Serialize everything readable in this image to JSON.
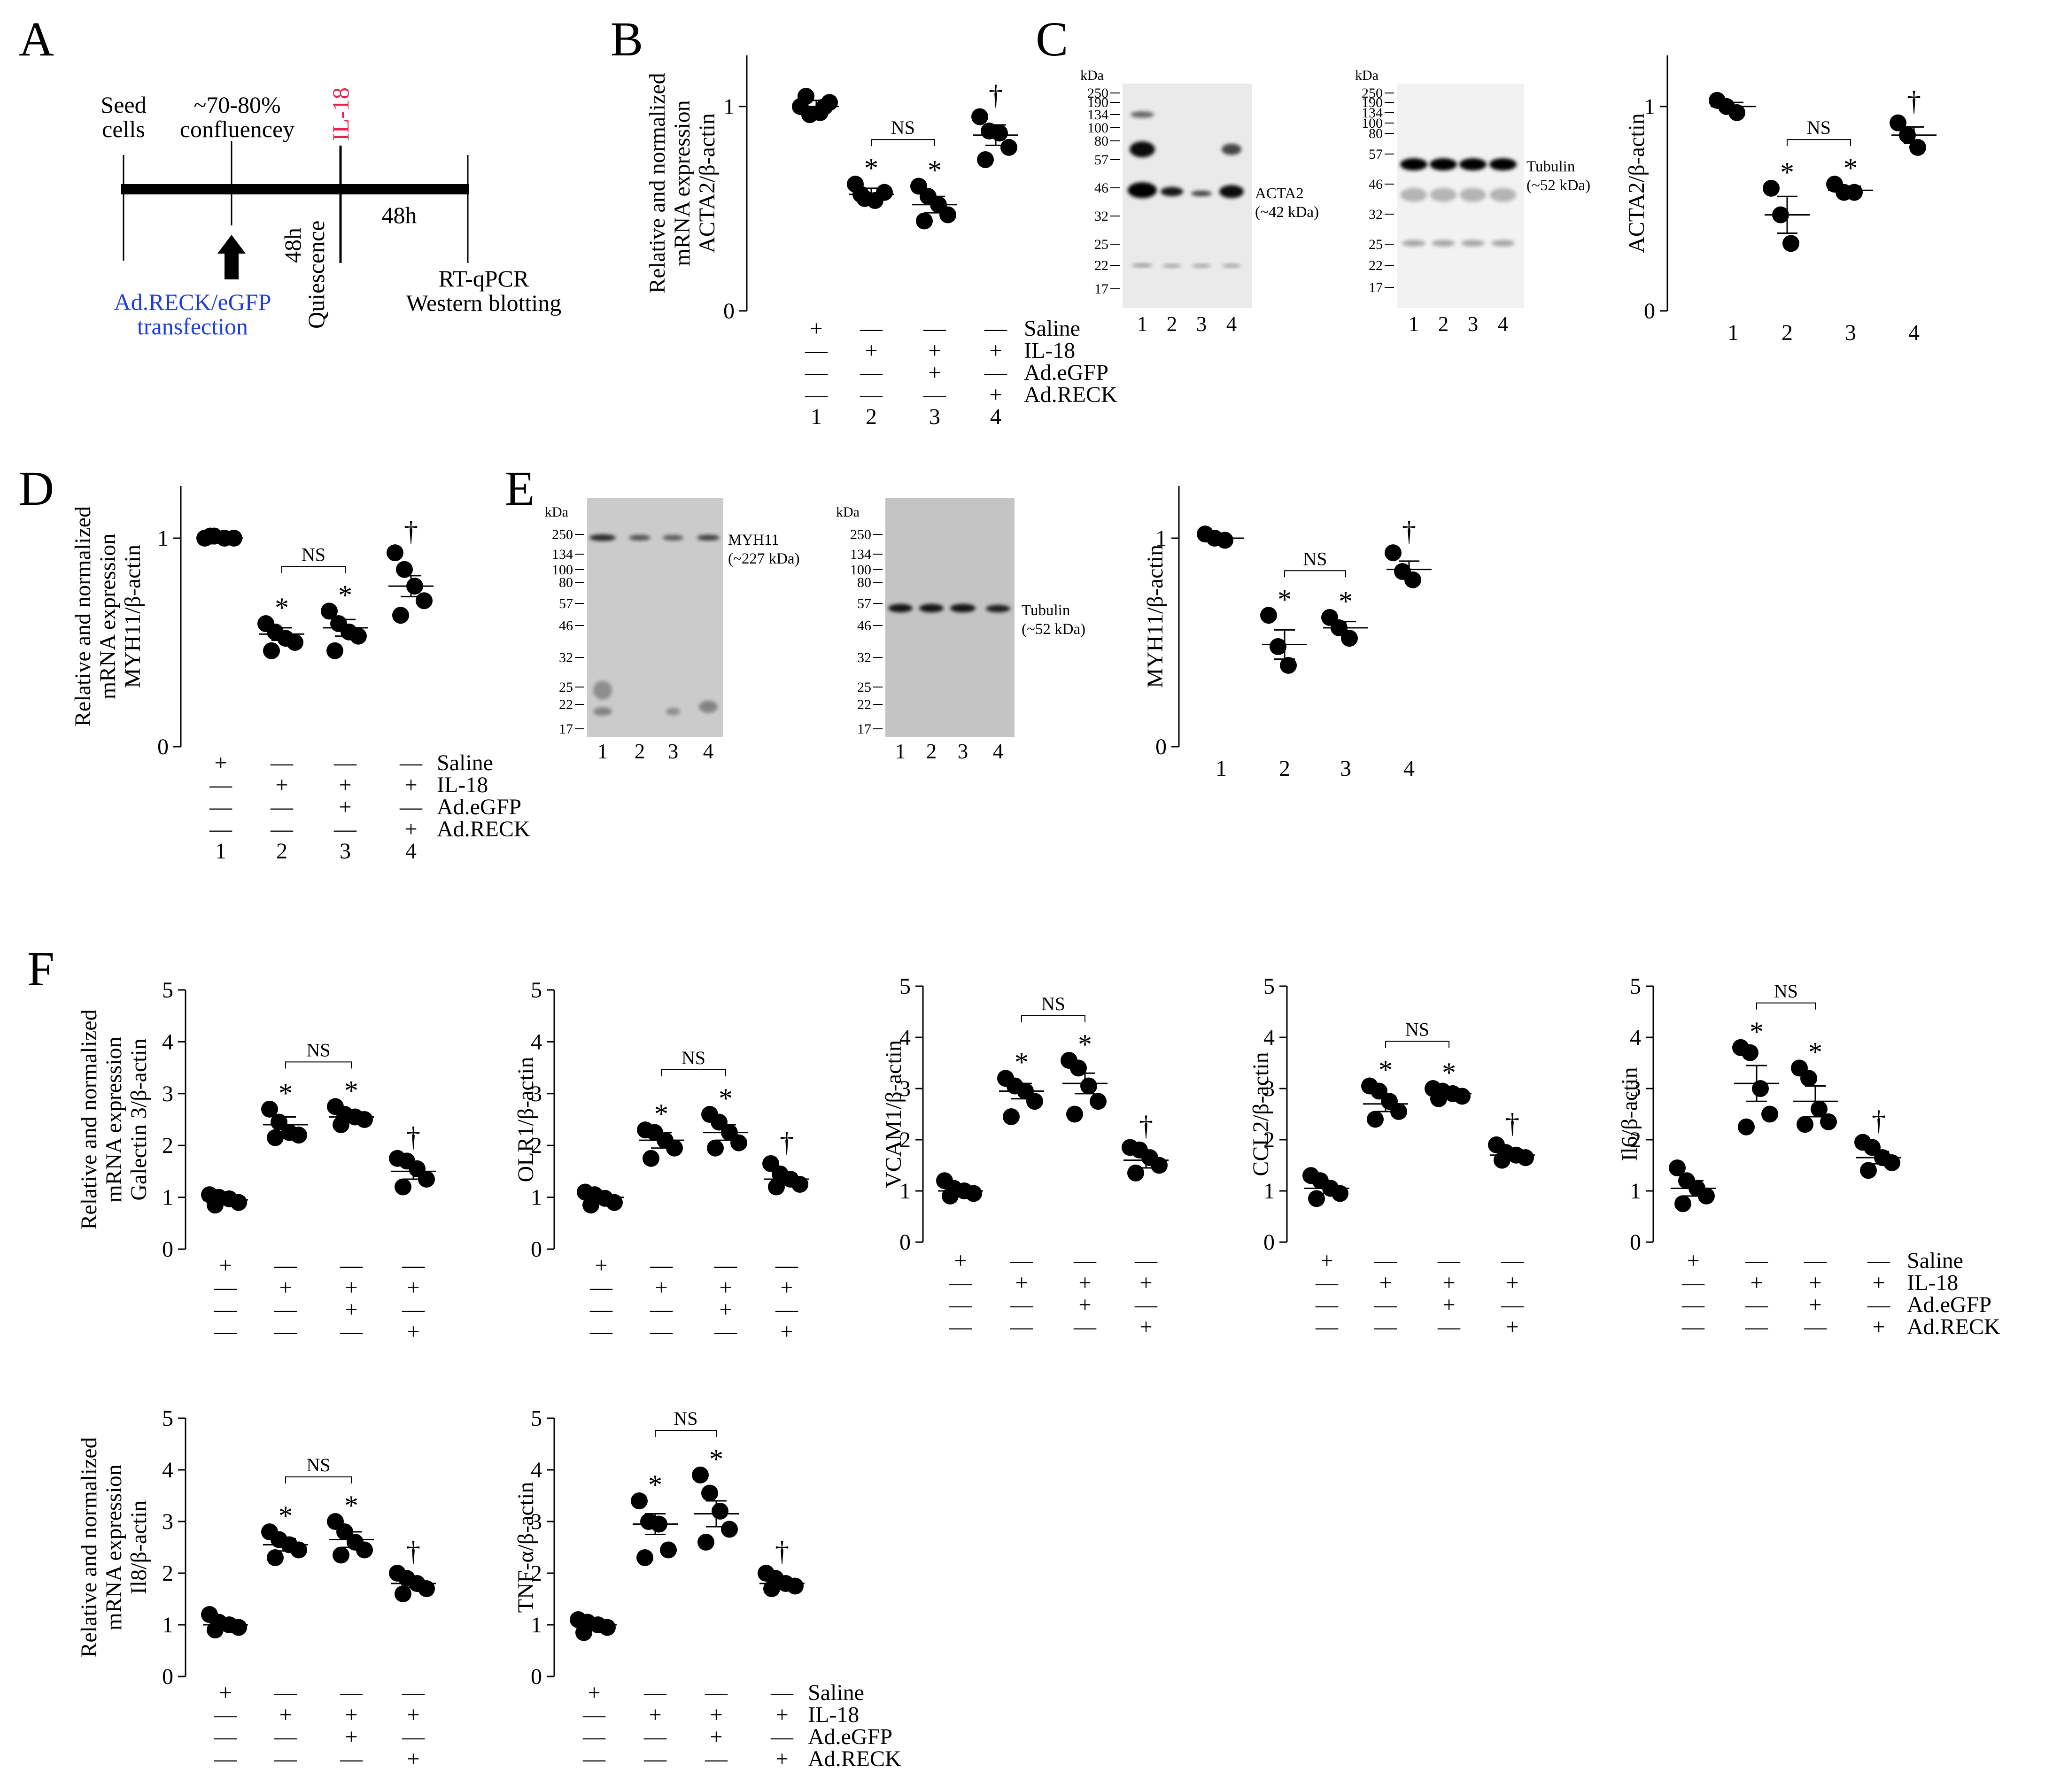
{
  "panel_letters": [
    "A",
    "B",
    "C",
    "D",
    "E",
    "F"
  ],
  "timeline": {
    "seed": [
      "Seed",
      "cells"
    ],
    "confluency": [
      "~70-80%",
      "confluencey"
    ],
    "il18": "IL-18",
    "il18_color": "#e8224a",
    "quiescence": [
      "48h",
      "Quiescence"
    ],
    "h48": "48h",
    "transfection": [
      "Ad.RECK/eGFP",
      "transfection"
    ],
    "transfection_color": "#1f3fd6",
    "assay": [
      "RT-qPCR",
      "Western blotting"
    ]
  },
  "treatment_names": [
    "Saline",
    "IL-18",
    "Ad.eGFP",
    "Ad.RECK"
  ],
  "treatment_signs": [
    [
      "+",
      "—",
      "—",
      "—"
    ],
    [
      "—",
      "+",
      "+",
      "+"
    ],
    [
      "—",
      "—",
      "+",
      "—"
    ],
    [
      "—",
      "—",
      "—",
      "+"
    ]
  ],
  "group_numbers": [
    "1",
    "2",
    "3",
    "4"
  ],
  "markers": {
    "star": "*",
    "dagger": "†",
    "ns": "NS"
  },
  "kda_title": "kDa",
  "blots": {
    "acta2": {
      "markers": [
        "250",
        "190",
        "134",
        "100",
        "80",
        "57",
        "46",
        "32",
        "25",
        "22",
        "17"
      ],
      "protein": "ACTA2",
      "size": "(~42 kDa)"
    },
    "tub1": {
      "markers": [
        "250",
        "190",
        "134",
        "100",
        "80",
        "57",
        "46",
        "32",
        "25",
        "22",
        "17"
      ],
      "protein": "Tubulin",
      "size": "(~52 kDa)"
    },
    "myh11": {
      "markers": [
        "250",
        "134",
        "100",
        "80",
        "57",
        "46",
        "32",
        "25",
        "22",
        "17"
      ],
      "protein": "MYH11",
      "size": "(~227 kDa)"
    },
    "tub2": {
      "markers": [
        "250",
        "134",
        "100",
        "80",
        "57",
        "46",
        "32",
        "25",
        "22",
        "17"
      ],
      "protein": "Tubulin",
      "size": "(~52 kDa)"
    }
  },
  "chart_data": [
    {
      "id": "B",
      "type": "scatter",
      "ylabel": [
        "Relative and normalized",
        "mRNA expression",
        "ACTA2/β-actin"
      ],
      "yticks": [
        "0",
        "1"
      ],
      "ylim": [
        0,
        1.25
      ],
      "groups": [
        {
          "points": [
            1.0,
            0.96,
            0.97,
            1.02,
            1.05,
            1.0
          ],
          "mean": 1.0,
          "err": 0.03,
          "mark": ""
        },
        {
          "points": [
            0.62,
            0.55,
            0.54,
            0.58,
            0.57
          ],
          "mean": 0.57,
          "err": 0.03,
          "mark": "*"
        },
        {
          "points": [
            0.61,
            0.56,
            0.52,
            0.47,
            0.44
          ],
          "mean": 0.52,
          "err": 0.04,
          "mark": "*"
        },
        {
          "points": [
            0.95,
            0.88,
            0.87,
            0.8,
            0.74
          ],
          "mean": 0.86,
          "err": 0.05,
          "mark": "†"
        }
      ],
      "ns": [
        1,
        2
      ],
      "table": true
    },
    {
      "id": "C",
      "type": "scatter",
      "ylabel": [
        "ACTA2/β-actin"
      ],
      "yticks": [
        "0",
        "1"
      ],
      "ylim": [
        0,
        1.25
      ],
      "groups": [
        {
          "points": [
            1.03,
            1.0,
            0.97
          ],
          "mean": 1.0,
          "err": 0.02,
          "mark": ""
        },
        {
          "points": [
            0.6,
            0.47,
            0.33
          ],
          "mean": 0.47,
          "err": 0.09,
          "mark": "*"
        },
        {
          "points": [
            0.62,
            0.58,
            0.58
          ],
          "mean": 0.59,
          "err": 0.02,
          "mark": "*"
        },
        {
          "points": [
            0.92,
            0.86,
            0.8
          ],
          "mean": 0.86,
          "err": 0.04,
          "mark": "†"
        }
      ],
      "ns": [
        1,
        2
      ],
      "table": false
    },
    {
      "id": "D",
      "type": "scatter",
      "ylabel": [
        "Relative and normalized",
        "mRNA expression",
        "MYH11/β-actin"
      ],
      "yticks": [
        "0",
        "1"
      ],
      "ylim": [
        0,
        1.25
      ],
      "groups": [
        {
          "points": [
            1.0,
            1.01,
            1.0,
            1.0,
            1.01
          ],
          "mean": 1.0,
          "err": 0.01,
          "mark": ""
        },
        {
          "points": [
            0.59,
            0.55,
            0.52,
            0.5,
            0.46
          ],
          "mean": 0.54,
          "err": 0.03,
          "mark": "*"
        },
        {
          "points": [
            0.65,
            0.59,
            0.55,
            0.53,
            0.46
          ],
          "mean": 0.57,
          "err": 0.04,
          "mark": "*"
        },
        {
          "points": [
            0.93,
            0.85,
            0.77,
            0.7,
            0.63
          ],
          "mean": 0.77,
          "err": 0.05,
          "mark": "†"
        }
      ],
      "ns": [
        1,
        2
      ],
      "table": true
    },
    {
      "id": "E",
      "type": "scatter",
      "ylabel": [
        "MYH11/β-actin"
      ],
      "yticks": [
        "0",
        "1"
      ],
      "ylim": [
        0,
        1.25
      ],
      "groups": [
        {
          "points": [
            1.02,
            1.0,
            0.99
          ],
          "mean": 1.0,
          "err": 0.01,
          "mark": ""
        },
        {
          "points": [
            0.63,
            0.48,
            0.39
          ],
          "mean": 0.49,
          "err": 0.07,
          "mark": "*"
        },
        {
          "points": [
            0.62,
            0.57,
            0.52
          ],
          "mean": 0.57,
          "err": 0.03,
          "mark": "*"
        },
        {
          "points": [
            0.93,
            0.84,
            0.8
          ],
          "mean": 0.85,
          "err": 0.04,
          "mark": "†"
        }
      ],
      "ns": [
        1,
        2
      ],
      "table": false
    },
    {
      "id": "F1",
      "type": "scatter",
      "ylabel": [
        "Relative and normalized",
        "mRNA expression",
        "Galectin 3/β-actin"
      ],
      "yticks": [
        "0",
        "1",
        "2",
        "3",
        "4",
        "5"
      ],
      "ylim": [
        0,
        5
      ],
      "groups": [
        {
          "points": [
            1.05,
            1.0,
            0.97,
            0.9,
            0.85
          ],
          "mean": 0.95,
          "err": 0.06,
          "mark": ""
        },
        {
          "points": [
            2.7,
            2.45,
            2.25,
            2.2,
            2.15
          ],
          "mean": 2.4,
          "err": 0.15,
          "mark": "*"
        },
        {
          "points": [
            2.75,
            2.6,
            2.55,
            2.5,
            2.4
          ],
          "mean": 2.55,
          "err": 0.1,
          "mark": "*"
        },
        {
          "points": [
            1.75,
            1.7,
            1.55,
            1.35,
            1.2
          ],
          "mean": 1.5,
          "err": 0.15,
          "mark": "†"
        }
      ],
      "ns": [
        1,
        2
      ],
      "table": true,
      "table_names": false
    },
    {
      "id": "F2",
      "type": "scatter",
      "ylabel": [
        "OLR1/β-actin"
      ],
      "yticks": [
        "0",
        "1",
        "2",
        "3",
        "4",
        "5"
      ],
      "ylim": [
        0,
        5
      ],
      "groups": [
        {
          "points": [
            1.1,
            1.05,
            0.98,
            0.9,
            0.85
          ],
          "mean": 1.0,
          "err": 0.07,
          "mark": ""
        },
        {
          "points": [
            2.3,
            2.25,
            2.1,
            1.95,
            1.75
          ],
          "mean": 2.1,
          "err": 0.15,
          "mark": "*"
        },
        {
          "points": [
            2.6,
            2.45,
            2.25,
            2.05,
            1.95
          ],
          "mean": 2.25,
          "err": 0.15,
          "mark": "*"
        },
        {
          "points": [
            1.65,
            1.45,
            1.35,
            1.25,
            1.2
          ],
          "mean": 1.35,
          "err": 0.1,
          "mark": "†"
        }
      ],
      "ns": [
        1,
        2
      ],
      "table": true,
      "table_names": false
    },
    {
      "id": "F3",
      "type": "scatter",
      "ylabel": [
        "VCAM1/β-actin"
      ],
      "yticks": [
        "0",
        "1",
        "2",
        "3",
        "4",
        "5"
      ],
      "ylim": [
        0,
        5
      ],
      "groups": [
        {
          "points": [
            1.2,
            1.05,
            1.0,
            0.95,
            0.9
          ],
          "mean": 1.0,
          "err": 0.06,
          "mark": ""
        },
        {
          "points": [
            3.2,
            3.05,
            2.95,
            2.75,
            2.45
          ],
          "mean": 2.95,
          "err": 0.15,
          "mark": "*"
        },
        {
          "points": [
            3.55,
            3.4,
            3.05,
            2.75,
            2.5
          ],
          "mean": 3.1,
          "err": 0.2,
          "mark": "*"
        },
        {
          "points": [
            1.85,
            1.8,
            1.65,
            1.5,
            1.35
          ],
          "mean": 1.6,
          "err": 0.15,
          "mark": "†"
        }
      ],
      "ns": [
        1,
        2
      ],
      "table": true,
      "table_names": false
    },
    {
      "id": "F4",
      "type": "scatter",
      "ylabel": [
        "CCL2/β-actin"
      ],
      "yticks": [
        "0",
        "1",
        "2",
        "3",
        "4",
        "5"
      ],
      "ylim": [
        0,
        5
      ],
      "groups": [
        {
          "points": [
            1.3,
            1.2,
            1.05,
            0.95,
            0.85
          ],
          "mean": 1.05,
          "err": 0.1,
          "mark": ""
        },
        {
          "points": [
            3.05,
            2.95,
            2.75,
            2.55,
            2.4
          ],
          "mean": 2.7,
          "err": 0.15,
          "mark": "*"
        },
        {
          "points": [
            3.0,
            2.95,
            2.9,
            2.85,
            2.8
          ],
          "mean": 2.9,
          "err": 0.05,
          "mark": "*"
        },
        {
          "points": [
            1.9,
            1.75,
            1.7,
            1.65,
            1.6
          ],
          "mean": 1.7,
          "err": 0.1,
          "mark": "†"
        }
      ],
      "ns": [
        1,
        2
      ],
      "table": true,
      "table_names": false
    },
    {
      "id": "F5",
      "type": "scatter",
      "ylabel": [
        "Il6/β-actin"
      ],
      "yticks": [
        "0",
        "1",
        "2",
        "3",
        "4",
        "5"
      ],
      "ylim": [
        0,
        5
      ],
      "groups": [
        {
          "points": [
            1.45,
            1.2,
            1.05,
            0.9,
            0.75
          ],
          "mean": 1.05,
          "err": 0.15,
          "mark": ""
        },
        {
          "points": [
            3.8,
            3.7,
            3.0,
            2.5,
            2.25
          ],
          "mean": 3.1,
          "err": 0.35,
          "mark": "*"
        },
        {
          "points": [
            3.4,
            3.2,
            2.6,
            2.35,
            2.3
          ],
          "mean": 2.75,
          "err": 0.3,
          "mark": "*"
        },
        {
          "points": [
            1.95,
            1.85,
            1.65,
            1.55,
            1.4
          ],
          "mean": 1.65,
          "err": 0.12,
          "mark": "†"
        }
      ],
      "ns": [
        1,
        2
      ],
      "table": true,
      "table_names": true
    },
    {
      "id": "F6",
      "type": "scatter",
      "ylabel": [
        "Relative and normalized",
        "mRNA expression",
        "Il8/β-actin"
      ],
      "yticks": [
        "0",
        "1",
        "2",
        "3",
        "4",
        "5"
      ],
      "ylim": [
        0,
        5
      ],
      "groups": [
        {
          "points": [
            1.2,
            1.05,
            1.0,
            0.95,
            0.9
          ],
          "mean": 1.0,
          "err": 0.06,
          "mark": ""
        },
        {
          "points": [
            2.8,
            2.65,
            2.55,
            2.45,
            2.3
          ],
          "mean": 2.55,
          "err": 0.12,
          "mark": "*"
        },
        {
          "points": [
            3.0,
            2.8,
            2.6,
            2.45,
            2.35
          ],
          "mean": 2.65,
          "err": 0.15,
          "mark": "*"
        },
        {
          "points": [
            2.0,
            1.9,
            1.8,
            1.7,
            1.6
          ],
          "mean": 1.8,
          "err": 0.08,
          "mark": "†"
        }
      ],
      "ns": [
        1,
        2
      ],
      "table": true,
      "table_names": false
    },
    {
      "id": "F7",
      "type": "scatter",
      "ylabel": [
        "TNF-α/β-actin"
      ],
      "yticks": [
        "0",
        "1",
        "2",
        "3",
        "4",
        "5"
      ],
      "ylim": [
        0,
        5
      ],
      "groups": [
        {
          "points": [
            1.1,
            1.05,
            1.0,
            0.95,
            0.85
          ],
          "mean": 1.0,
          "err": 0.06,
          "mark": ""
        },
        {
          "points": [
            3.4,
            3.0,
            2.95,
            2.45,
            2.3
          ],
          "mean": 2.95,
          "err": 0.2,
          "mark": "*"
        },
        {
          "points": [
            3.9,
            3.55,
            3.2,
            2.85,
            2.6
          ],
          "mean": 3.15,
          "err": 0.25,
          "mark": "*"
        },
        {
          "points": [
            2.0,
            1.9,
            1.8,
            1.75,
            1.7
          ],
          "mean": 1.8,
          "err": 0.06,
          "mark": "†"
        }
      ],
      "ns": [
        1,
        2
      ],
      "table": true,
      "table_names": true
    }
  ]
}
